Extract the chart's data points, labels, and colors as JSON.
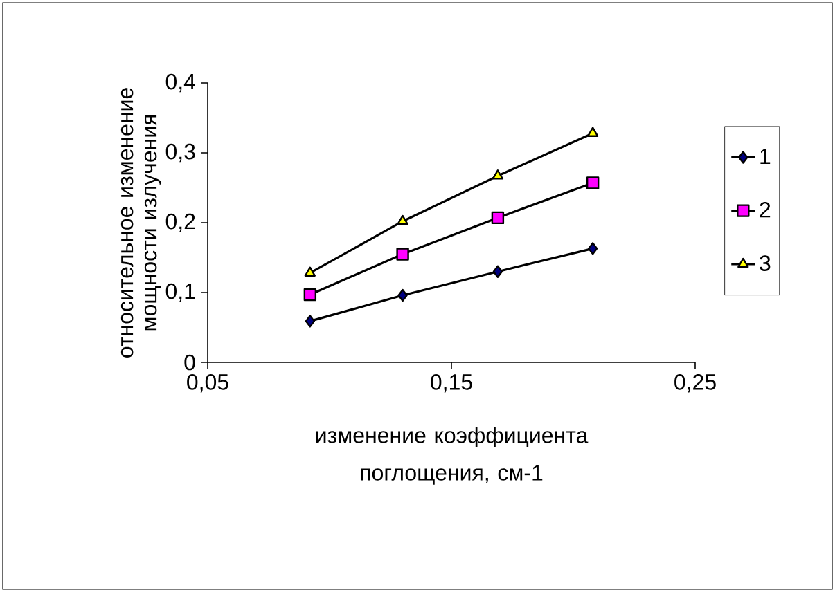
{
  "chart_data": {
    "type": "line",
    "xlabel": "изменение коэффициента поглощения, см-1",
    "ylabel": "относительное изменение мощности излучения",
    "x": [
      0.092,
      0.13,
      0.169,
      0.208
    ],
    "series": [
      {
        "name": "1",
        "color": "#000080",
        "marker": "diamond",
        "values": [
          0.059,
          0.096,
          0.13,
          0.163
        ]
      },
      {
        "name": "2",
        "color": "#ff00ff",
        "marker": "square",
        "values": [
          0.097,
          0.155,
          0.207,
          0.257
        ]
      },
      {
        "name": "3",
        "color": "#ffff00",
        "marker": "triangle",
        "values": [
          0.128,
          0.202,
          0.267,
          0.328
        ]
      }
    ],
    "xlim": [
      0.05,
      0.25
    ],
    "xticks": [
      {
        "value": 0.05,
        "label": "0,05"
      },
      {
        "value": 0.15,
        "label": "0,15"
      },
      {
        "value": 0.25,
        "label": "0,25"
      }
    ],
    "ylim": [
      0,
      0.4
    ],
    "yticks": [
      0,
      {
        "value": 0.1,
        "label": "0,1"
      },
      {
        "value": 0.2,
        "label": "0,2"
      },
      {
        "value": 0.3,
        "label": "0,3"
      },
      {
        "value": 0.4,
        "label": "0,4"
      }
    ],
    "legend": "right",
    "line_style": "solid"
  }
}
